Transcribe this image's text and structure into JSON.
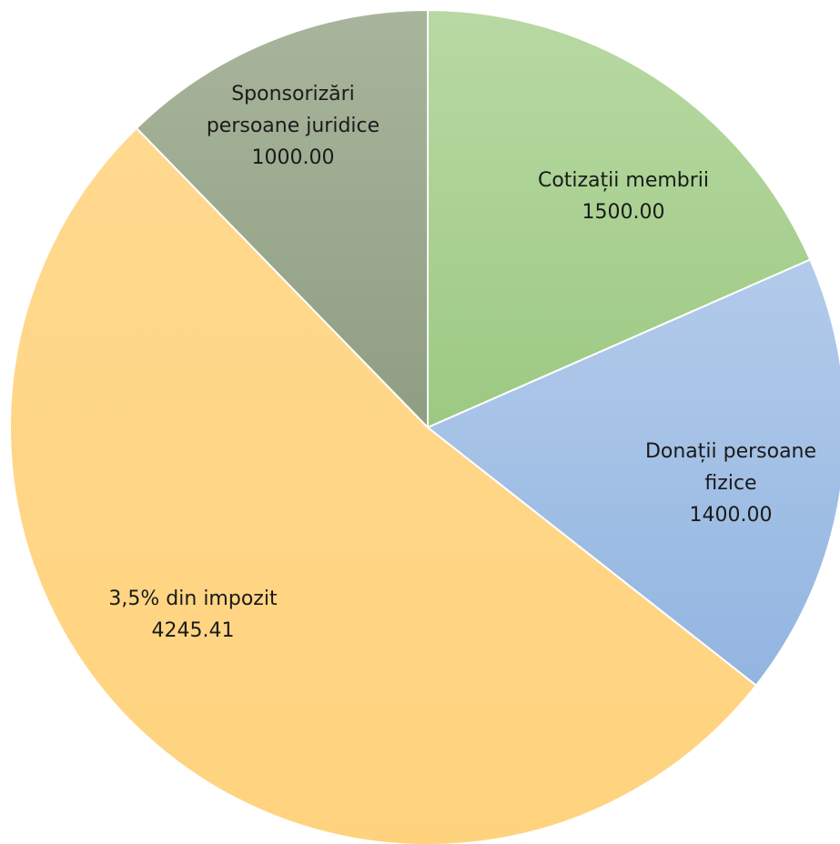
{
  "chart_data": {
    "type": "pie",
    "start_angle_deg": 0,
    "direction": "clockwise",
    "slices": [
      {
        "label_lines": [
          "Cotizații membrii"
        ],
        "value_text": "1500.00",
        "value": 1500.0,
        "color": "#a9d18e",
        "color_light": "#b8d9a3",
        "color_dark": "#9cc982"
      },
      {
        "label_lines": [
          "Donații persoane",
          "fizice"
        ],
        "value_text": "1400.00",
        "value": 1400.0,
        "color": "#a4c1e6",
        "color_light": "#b3cbeb",
        "color_dark": "#92b5e0"
      },
      {
        "label_lines": [
          "3,5% din impozit"
        ],
        "value_text": "4245.41",
        "value": 4245.41,
        "color": "#ffd385",
        "color_light": "#ffd98f",
        "color_dark": "#ffd37e"
      },
      {
        "label_lines": [
          "Sponsorizări",
          "persoane juridice"
        ],
        "value_text": "1000.00",
        "value": 1000.0,
        "color": "#a0ae94",
        "color_light": "#a8b59c",
        "color_dark": "#8f9e82"
      }
    ]
  }
}
